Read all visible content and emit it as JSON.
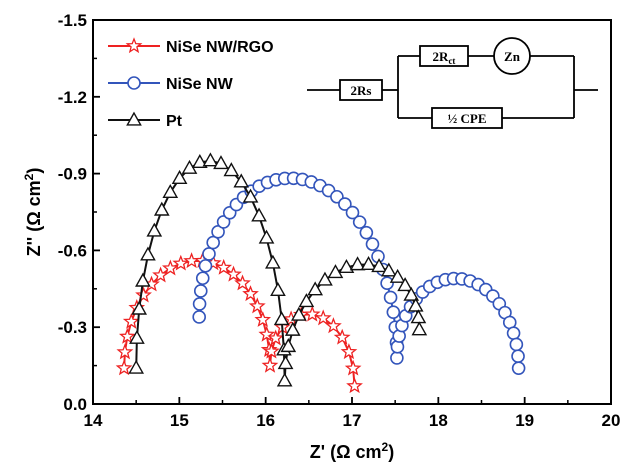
{
  "chart_data": {
    "type": "scatter",
    "title": "",
    "xlabel": "Z' (Ω cm²)",
    "ylabel": "Z'' (Ω cm²)",
    "xlim": [
      14,
      20
    ],
    "ylim": [
      0,
      -1.5
    ],
    "x_ticks": [
      "14",
      "15",
      "16",
      "17",
      "18",
      "19",
      "20"
    ],
    "y_ticks": [
      "0.0",
      "-0.3",
      "-0.6",
      "-0.9",
      "-1.2",
      "-1.5"
    ],
    "y_inverted": true,
    "grid": false,
    "legend_position": "top-left",
    "series": [
      {
        "name": "NiSe NW/RGO",
        "marker": "star",
        "color": "#ee2222",
        "arcs": [
          {
            "x0": 14.36,
            "x1": 16.05,
            "y0": -0.14,
            "y1": -0.15,
            "peak": -0.56,
            "n": 22
          },
          {
            "x0": 16.05,
            "x1": 17.03,
            "y0": -0.15,
            "y1": -0.07,
            "peak": -0.35,
            "n": 13
          }
        ]
      },
      {
        "name": "NiSe NW",
        "marker": "circle",
        "color": "#3355bb",
        "arcs": [
          {
            "x0": 15.23,
            "x1": 17.52,
            "y0": -0.34,
            "y1": -0.18,
            "peak": -0.88,
            "n": 36
          },
          {
            "x0": 17.52,
            "x1": 18.93,
            "y0": -0.18,
            "y1": -0.14,
            "peak": -0.49,
            "n": 24
          }
        ]
      },
      {
        "name": "Pt",
        "marker": "triangle",
        "color": "#111111",
        "arcs": [
          {
            "x0": 14.5,
            "x1": 16.22,
            "y0": -0.14,
            "y1": -0.09,
            "peak": -0.95,
            "n": 23
          },
          {
            "x0": 16.22,
            "x1": 17.78,
            "y0": -0.09,
            "y1": -0.29,
            "peak": -0.54,
            "n": 20
          }
        ]
      }
    ],
    "circuit": {
      "rs_label": "2Rs",
      "rct_label": "2R",
      "rct_sub": "ct",
      "zn_label": "Zn",
      "cpe_label": "½ CPE"
    }
  }
}
